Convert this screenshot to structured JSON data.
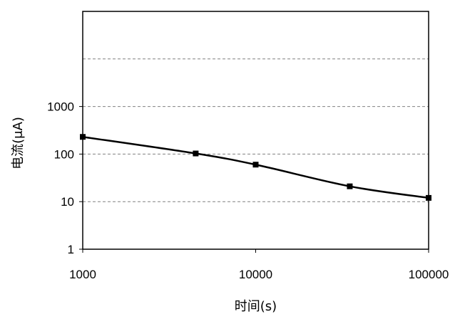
{
  "chart_data": {
    "type": "line",
    "title": "",
    "xlabel": "时间(s)",
    "ylabel": "电流(μA)",
    "x_scale": "log",
    "y_scale": "log",
    "xlim": [
      1000,
      100000
    ],
    "ylim": [
      1,
      100000
    ],
    "x_ticks": [
      "1000",
      "10000",
      "100000"
    ],
    "y_ticks": [
      "1",
      "10",
      "100",
      "1000"
    ],
    "grid": "horizontal dashed",
    "legend": "none",
    "series": [
      {
        "x": [
          1000,
          4500,
          10000,
          35000,
          100000
        ],
        "y": [
          230,
          103,
          60,
          21,
          12
        ],
        "color": "#000000",
        "marker": "square"
      }
    ]
  }
}
